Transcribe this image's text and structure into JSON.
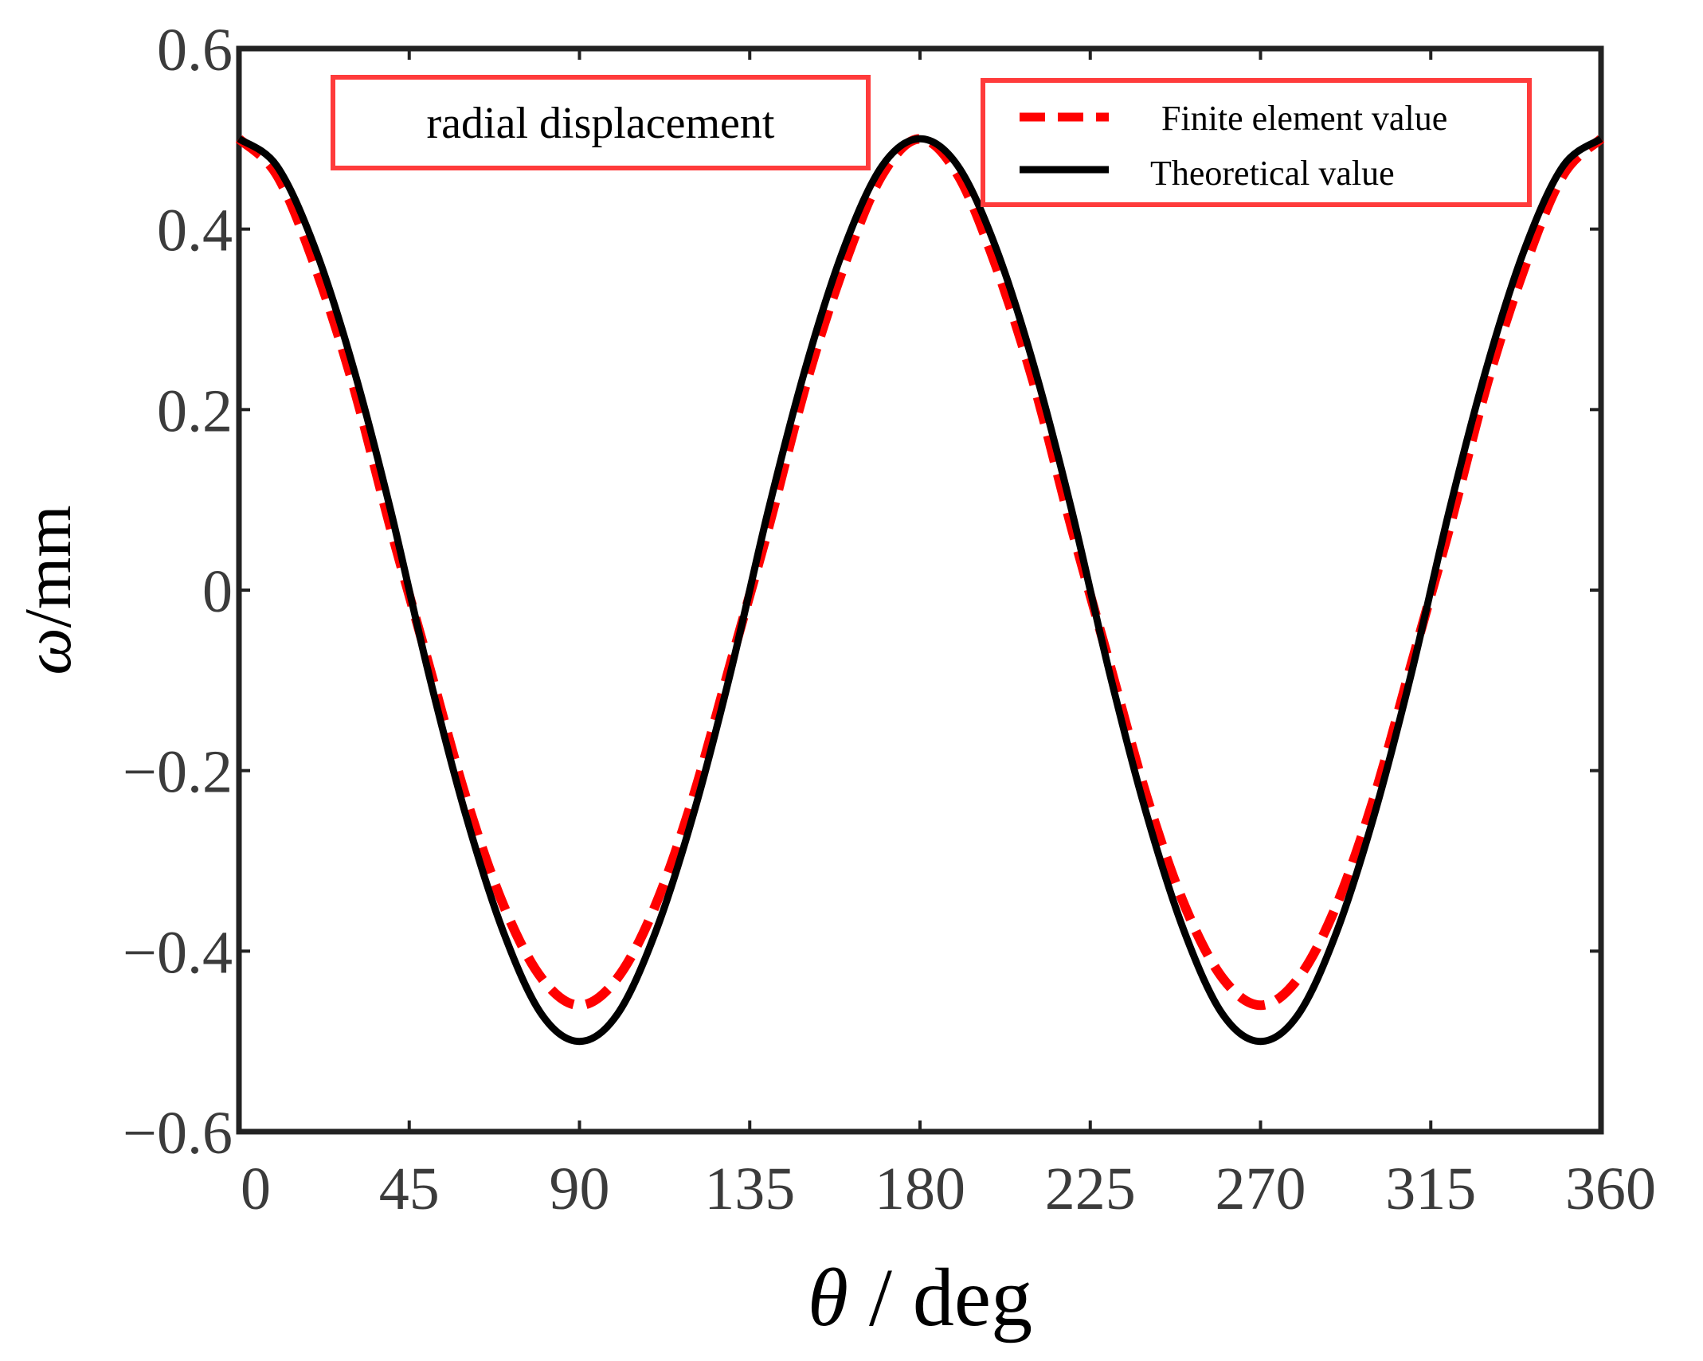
{
  "chart_data": {
    "type": "line",
    "title": "",
    "xlabel_symbol": "θ",
    "xlabel_rest": " / deg",
    "ylabel_symbol": "ω",
    "ylabel_rest": "/mm",
    "xlim": [
      0,
      360
    ],
    "ylim": [
      -0.6,
      0.6
    ],
    "x_ticks": [
      0,
      45,
      90,
      135,
      180,
      225,
      270,
      315,
      360
    ],
    "x_tick_labels": [
      "0",
      "45",
      "90",
      "135",
      "180",
      "225",
      "270",
      "315",
      "360"
    ],
    "y_ticks": [
      0.6,
      0.4,
      0.2,
      0,
      -0.2,
      -0.4,
      -0.6
    ],
    "y_tick_labels": [
      "0.6",
      "0.4",
      "0.2",
      "0",
      "−0.2",
      "−0.4",
      "−0.6"
    ],
    "grid": false,
    "legend_position": "top-right",
    "annotation": "radial displacement",
    "x": [
      0,
      10,
      20,
      30,
      40,
      50,
      60,
      70,
      80,
      90,
      100,
      110,
      120,
      130,
      140,
      150,
      160,
      170,
      180,
      190,
      200,
      210,
      220,
      230,
      240,
      250,
      260,
      270,
      280,
      290,
      300,
      310,
      320,
      330,
      340,
      350,
      360
    ],
    "series": [
      {
        "name": "Finite element value",
        "color": "#ff0000",
        "style": "dashed",
        "values": [
          0.5,
          0.46,
          0.36,
          0.23,
          0.07,
          -0.08,
          -0.23,
          -0.35,
          -0.43,
          -0.46,
          -0.43,
          -0.35,
          -0.23,
          -0.08,
          0.07,
          0.23,
          0.36,
          0.46,
          0.5,
          0.46,
          0.36,
          0.23,
          0.07,
          -0.08,
          -0.23,
          -0.35,
          -0.43,
          -0.46,
          -0.43,
          -0.35,
          -0.23,
          -0.08,
          0.07,
          0.23,
          0.36,
          0.46,
          0.5
        ]
      },
      {
        "name": "Theoretical value",
        "color": "#000000",
        "style": "solid",
        "values": [
          0.5,
          0.47,
          0.38,
          0.25,
          0.09,
          -0.09,
          -0.25,
          -0.38,
          -0.47,
          -0.5,
          -0.47,
          -0.38,
          -0.25,
          -0.09,
          0.09,
          0.25,
          0.38,
          0.47,
          0.5,
          0.47,
          0.38,
          0.25,
          0.09,
          -0.09,
          -0.25,
          -0.38,
          -0.47,
          -0.5,
          -0.47,
          -0.38,
          -0.25,
          -0.09,
          0.09,
          0.25,
          0.38,
          0.47,
          0.5
        ]
      }
    ]
  }
}
